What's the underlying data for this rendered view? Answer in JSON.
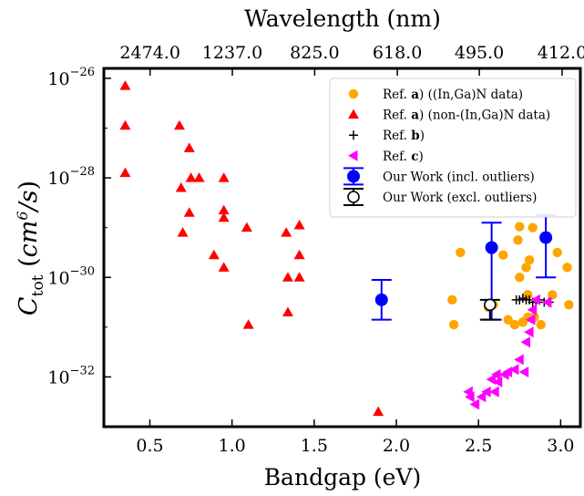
{
  "chart_data": {
    "type": "scatter",
    "xlabel": "Bandgap (eV)",
    "x2label": "Wavelength (nm)",
    "ylabel_parts": {
      "sym": "C",
      "sub": "tot",
      "unit_open": " (",
      "unit_a": "cm",
      "unit_sup": "6",
      "unit_b": "/s",
      "unit_close": ")"
    },
    "xlim": [
      0.22,
      3.12
    ],
    "ylim_exp": [
      -33.0,
      -25.8
    ],
    "y_log": true,
    "x_ticks": [
      0.5,
      1.0,
      1.5,
      2.0,
      2.5,
      3.0
    ],
    "x_tick_labels": [
      "0.5",
      "1.0",
      "1.5",
      "2.0",
      "2.5",
      "3.0"
    ],
    "y_ticks_exp": [
      -26,
      -28,
      -30,
      -32
    ],
    "y_tick_labels": [
      "10",
      "10",
      "10",
      "10"
    ],
    "y_tick_sup": [
      "−26",
      "−28",
      "−30",
      "−32"
    ],
    "x2_ticks": [
      0.501,
      1.002,
      1.503,
      2.006,
      2.505,
      3.009
    ],
    "x2_tick_labels": [
      "2474.0",
      "1237.0",
      "825.0",
      "618.0",
      "495.0",
      "412.0"
    ],
    "grid": false,
    "legend_position": "top-right",
    "series": [
      {
        "name_parts": [
          "Ref. ",
          "a",
          ") ((In,Ga)N data)"
        ],
        "marker": "circle",
        "color": "#FFA500",
        "points": [
          [
            2.34,
            -30.45
          ],
          [
            2.35,
            -30.95
          ],
          [
            2.39,
            -29.5
          ],
          [
            2.56,
            -30.6
          ],
          [
            2.58,
            -29.45
          ],
          [
            2.59,
            -30.55
          ],
          [
            2.65,
            -29.55
          ],
          [
            2.68,
            -30.85
          ],
          [
            2.72,
            -30.95
          ],
          [
            2.74,
            -29.25
          ],
          [
            2.75,
            -28.98
          ],
          [
            2.75,
            -30.0
          ],
          [
            2.77,
            -30.9
          ],
          [
            2.79,
            -29.8
          ],
          [
            2.8,
            -30.8
          ],
          [
            2.8,
            -30.35
          ],
          [
            2.81,
            -29.65
          ],
          [
            2.83,
            -29.0
          ],
          [
            2.84,
            -30.8
          ],
          [
            2.88,
            -30.95
          ],
          [
            2.95,
            -30.35
          ],
          [
            2.98,
            -29.5
          ],
          [
            3.04,
            -29.8
          ],
          [
            3.05,
            -30.55
          ]
        ]
      },
      {
        "name_parts": [
          "Ref. ",
          "a",
          ") (non-(In,Ga)N data)"
        ],
        "marker": "triangle-up",
        "color": "#FF0000",
        "points": [
          [
            0.35,
            -26.15
          ],
          [
            0.35,
            -26.95
          ],
          [
            0.35,
            -27.9
          ],
          [
            0.68,
            -26.95
          ],
          [
            0.69,
            -28.2
          ],
          [
            0.7,
            -29.1
          ],
          [
            0.74,
            -28.7
          ],
          [
            0.74,
            -27.4
          ],
          [
            0.75,
            -28.0
          ],
          [
            0.8,
            -28.0
          ],
          [
            0.89,
            -29.55
          ],
          [
            0.95,
            -28.0
          ],
          [
            0.95,
            -28.65
          ],
          [
            0.95,
            -28.8
          ],
          [
            0.95,
            -29.8
          ],
          [
            1.09,
            -29.0
          ],
          [
            1.1,
            -30.95
          ],
          [
            1.33,
            -29.1
          ],
          [
            1.34,
            -30.0
          ],
          [
            1.34,
            -30.7
          ],
          [
            1.41,
            -28.95
          ],
          [
            1.41,
            -29.55
          ],
          [
            1.41,
            -30.0
          ],
          [
            1.89,
            -32.7
          ]
        ]
      },
      {
        "name_parts": [
          "Ref. ",
          "b",
          ")"
        ],
        "marker": "plus",
        "color": "#000000",
        "points": [
          [
            2.73,
            -30.45
          ],
          [
            2.75,
            -30.45
          ],
          [
            2.77,
            -30.42
          ],
          [
            2.79,
            -30.45
          ],
          [
            2.81,
            -30.45
          ],
          [
            2.83,
            -30.5
          ],
          [
            2.85,
            -30.5
          ],
          [
            2.87,
            -30.45
          ],
          [
            2.9,
            -30.5
          ],
          [
            2.93,
            -30.5
          ]
        ]
      },
      {
        "name_parts": [
          "Ref. ",
          "c",
          ")"
        ],
        "marker": "triangle-left",
        "color": "#FF00FF",
        "points": [
          [
            2.44,
            -32.3
          ],
          [
            2.45,
            -32.4
          ],
          [
            2.48,
            -32.55
          ],
          [
            2.52,
            -32.4
          ],
          [
            2.55,
            -32.3
          ],
          [
            2.58,
            -32.05
          ],
          [
            2.6,
            -32.3
          ],
          [
            2.61,
            -31.95
          ],
          [
            2.62,
            -32.1
          ],
          [
            2.66,
            -31.95
          ],
          [
            2.68,
            -31.9
          ],
          [
            2.72,
            -31.85
          ],
          [
            2.75,
            -31.65
          ],
          [
            2.78,
            -31.9
          ],
          [
            2.79,
            -31.3
          ],
          [
            2.81,
            -31.1
          ],
          [
            2.82,
            -30.85
          ],
          [
            2.83,
            -30.65
          ],
          [
            2.85,
            -30.45
          ],
          [
            2.92,
            -30.5
          ]
        ]
      },
      {
        "name": "Our Work (incl. outliers)",
        "marker": "circle-errorbar",
        "color": "#0000FF",
        "points": [
          {
            "x": 1.91,
            "y": -30.45,
            "ylo": -30.85,
            "yhi": -30.05
          },
          {
            "x": 2.58,
            "y": -29.4,
            "ylo": -30.85,
            "yhi": -28.9
          },
          {
            "x": 2.91,
            "y": -29.2,
            "ylo": -30.0,
            "yhi": -28.75
          }
        ]
      },
      {
        "name": "Our Work (excl. outliers)",
        "marker": "open-circle-errorbar",
        "color": "#000000",
        "points": [
          {
            "x": 2.57,
            "y": -30.55,
            "ylo": -30.85,
            "yhi": -30.45
          }
        ]
      }
    ]
  }
}
